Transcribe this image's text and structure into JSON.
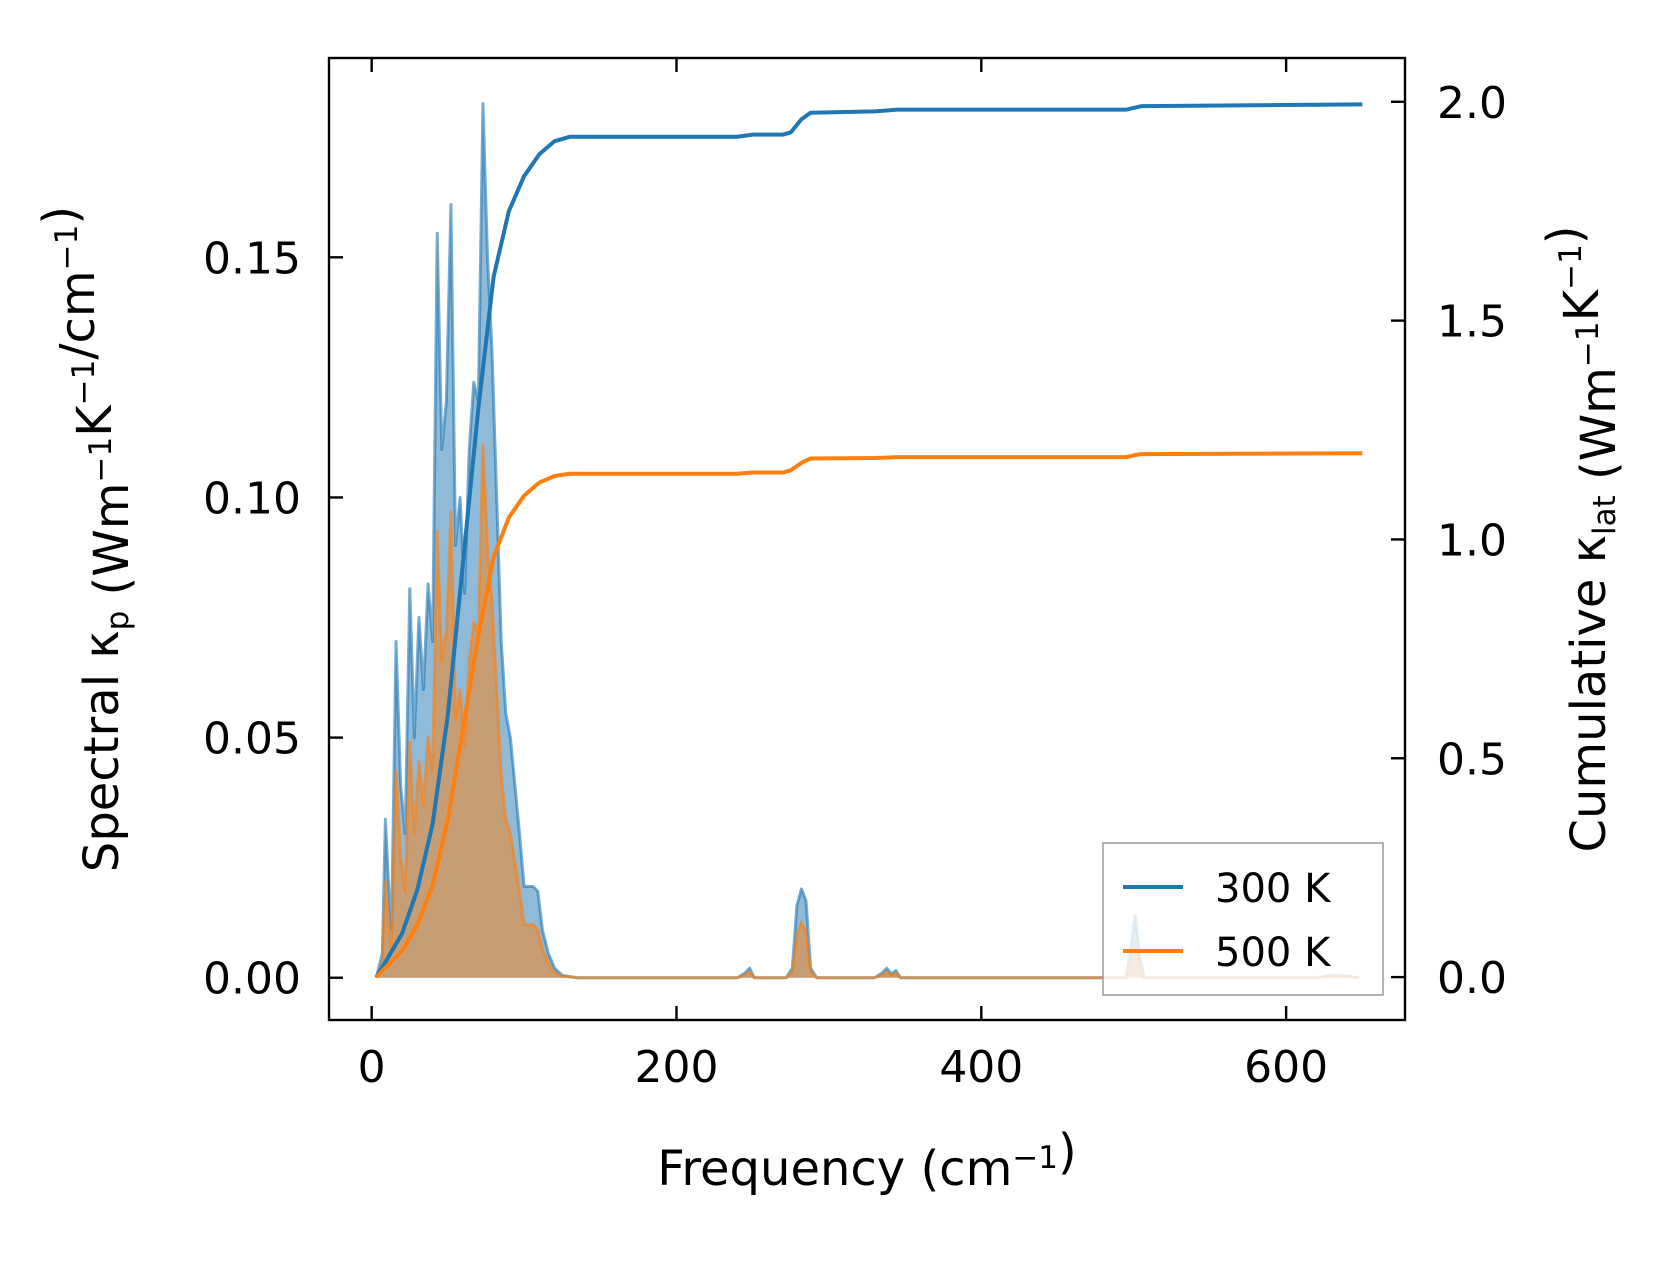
{
  "chart_data": {
    "type": "area",
    "xlabel": {
      "main": "Frequency (cm",
      "sup": "−1",
      "tail": ")"
    },
    "ylabel_left": {
      "parts": [
        {
          "t": "Spectral κ"
        },
        {
          "t": "p",
          "sub": true
        },
        {
          "t": " (Wm"
        },
        {
          "t": "−1",
          "sup": true
        },
        {
          "t": "K"
        },
        {
          "t": "−1",
          "sup": true
        },
        {
          "t": "/cm"
        },
        {
          "t": "−1",
          "sup": true
        },
        {
          "t": ")"
        }
      ]
    },
    "ylabel_right": {
      "parts": [
        {
          "t": "Cumulative κ"
        },
        {
          "t": "lat",
          "sub": true
        },
        {
          "t": " (Wm"
        },
        {
          "t": "−1",
          "sup": true
        },
        {
          "t": "K"
        },
        {
          "t": "−1",
          "sup": true
        },
        {
          "t": ")"
        }
      ]
    },
    "xlim": [
      -28,
      678
    ],
    "ylim_left": [
      -0.0088,
      0.1915
    ],
    "ylim_right": [
      -0.098,
      2.1
    ],
    "xticks": [
      0,
      200,
      400,
      600
    ],
    "yticks_left": [
      0.0,
      0.05,
      0.1,
      0.15
    ],
    "yticks_left_labels": [
      "0.00",
      "0.05",
      "0.10",
      "0.15"
    ],
    "yticks_right": [
      0.0,
      0.5,
      1.0,
      1.5,
      2.0
    ],
    "yticks_right_labels": [
      "0.0",
      "0.5",
      "1.0",
      "1.5",
      "2.0"
    ],
    "legend_position": "lower-right",
    "colors": {
      "300K": "#1f77b4",
      "500K": "#ff7f0e"
    },
    "series": [
      {
        "name": "300 K",
        "color": "#1f77b4",
        "spectral": [
          [
            3,
            0.0
          ],
          [
            7,
            0.005
          ],
          [
            9,
            0.033
          ],
          [
            11,
            0.02
          ],
          [
            13,
            0.01
          ],
          [
            16,
            0.07
          ],
          [
            19,
            0.04
          ],
          [
            22,
            0.03
          ],
          [
            25,
            0.081
          ],
          [
            28,
            0.05
          ],
          [
            31,
            0.075
          ],
          [
            34,
            0.06
          ],
          [
            37,
            0.082
          ],
          [
            40,
            0.07
          ],
          [
            43,
            0.155
          ],
          [
            46,
            0.11
          ],
          [
            49,
            0.12
          ],
          [
            52,
            0.161
          ],
          [
            55,
            0.09
          ],
          [
            58,
            0.1
          ],
          [
            61,
            0.08
          ],
          [
            64,
            0.11
          ],
          [
            67,
            0.124
          ],
          [
            70,
            0.12
          ],
          [
            73,
            0.182
          ],
          [
            76,
            0.15
          ],
          [
            79,
            0.13
          ],
          [
            82,
            0.1
          ],
          [
            85,
            0.07
          ],
          [
            88,
            0.055
          ],
          [
            91,
            0.05
          ],
          [
            94,
            0.04
          ],
          [
            97,
            0.03
          ],
          [
            100,
            0.019
          ],
          [
            103,
            0.019
          ],
          [
            106,
            0.019
          ],
          [
            109,
            0.018
          ],
          [
            112,
            0.01
          ],
          [
            116,
            0.005
          ],
          [
            120,
            0.002
          ],
          [
            125,
            0.0005
          ],
          [
            135,
            0.0
          ],
          [
            240,
            0.0
          ],
          [
            245,
            0.001
          ],
          [
            248,
            0.002
          ],
          [
            251,
            0.0
          ],
          [
            272,
            0.0
          ],
          [
            276,
            0.002
          ],
          [
            279,
            0.015
          ],
          [
            282,
            0.0185
          ],
          [
            285,
            0.016
          ],
          [
            288,
            0.002
          ],
          [
            292,
            0.0
          ],
          [
            330,
            0.0
          ],
          [
            335,
            0.001
          ],
          [
            338,
            0.002
          ],
          [
            341,
            0.0008
          ],
          [
            344,
            0.0015
          ],
          [
            347,
            0.0
          ],
          [
            495,
            0.0
          ],
          [
            498,
            0.006
          ],
          [
            501,
            0.013
          ],
          [
            504,
            0.004
          ],
          [
            507,
            0.0
          ],
          [
            620,
            0.0
          ],
          [
            630,
            0.0005
          ],
          [
            640,
            0.0003
          ],
          [
            648,
            0.0
          ]
        ],
        "cumulative": [
          [
            3,
            0.0
          ],
          [
            10,
            0.04
          ],
          [
            20,
            0.1
          ],
          [
            30,
            0.2
          ],
          [
            40,
            0.35
          ],
          [
            50,
            0.6
          ],
          [
            60,
            0.95
          ],
          [
            70,
            1.3
          ],
          [
            80,
            1.6
          ],
          [
            90,
            1.75
          ],
          [
            100,
            1.83
          ],
          [
            110,
            1.88
          ],
          [
            120,
            1.91
          ],
          [
            130,
            1.92
          ],
          [
            240,
            1.92
          ],
          [
            250,
            1.925
          ],
          [
            270,
            1.925
          ],
          [
            275,
            1.93
          ],
          [
            282,
            1.96
          ],
          [
            288,
            1.975
          ],
          [
            330,
            1.978
          ],
          [
            345,
            1.982
          ],
          [
            495,
            1.982
          ],
          [
            500,
            1.986
          ],
          [
            505,
            1.99
          ],
          [
            650,
            1.994
          ]
        ]
      },
      {
        "name": "500 K",
        "color": "#ff7f0e",
        "spectral": [
          [
            3,
            0.0
          ],
          [
            7,
            0.003
          ],
          [
            9,
            0.02
          ],
          [
            11,
            0.012
          ],
          [
            13,
            0.006
          ],
          [
            16,
            0.043
          ],
          [
            19,
            0.025
          ],
          [
            22,
            0.018
          ],
          [
            25,
            0.049
          ],
          [
            28,
            0.03
          ],
          [
            31,
            0.045
          ],
          [
            34,
            0.036
          ],
          [
            37,
            0.05
          ],
          [
            40,
            0.043
          ],
          [
            43,
            0.093
          ],
          [
            46,
            0.066
          ],
          [
            49,
            0.072
          ],
          [
            52,
            0.097
          ],
          [
            55,
            0.054
          ],
          [
            58,
            0.06
          ],
          [
            61,
            0.048
          ],
          [
            64,
            0.066
          ],
          [
            67,
            0.074
          ],
          [
            70,
            0.072
          ],
          [
            73,
            0.111
          ],
          [
            76,
            0.09
          ],
          [
            79,
            0.078
          ],
          [
            82,
            0.06
          ],
          [
            85,
            0.042
          ],
          [
            88,
            0.033
          ],
          [
            91,
            0.03
          ],
          [
            94,
            0.024
          ],
          [
            97,
            0.018
          ],
          [
            100,
            0.011
          ],
          [
            103,
            0.011
          ],
          [
            106,
            0.011
          ],
          [
            109,
            0.01
          ],
          [
            112,
            0.006
          ],
          [
            116,
            0.003
          ],
          [
            120,
            0.001
          ],
          [
            125,
            0.0003
          ],
          [
            135,
            0.0
          ],
          [
            240,
            0.0
          ],
          [
            245,
            0.0006
          ],
          [
            248,
            0.0012
          ],
          [
            251,
            0.0
          ],
          [
            272,
            0.0
          ],
          [
            276,
            0.0012
          ],
          [
            279,
            0.009
          ],
          [
            282,
            0.0115
          ],
          [
            285,
            0.0095
          ],
          [
            288,
            0.0012
          ],
          [
            292,
            0.0
          ],
          [
            330,
            0.0
          ],
          [
            335,
            0.0006
          ],
          [
            338,
            0.0012
          ],
          [
            341,
            0.0005
          ],
          [
            344,
            0.0009
          ],
          [
            347,
            0.0
          ],
          [
            495,
            0.0
          ],
          [
            498,
            0.0035
          ],
          [
            501,
            0.0075
          ],
          [
            504,
            0.0025
          ],
          [
            507,
            0.0
          ],
          [
            620,
            0.0
          ],
          [
            630,
            0.0003
          ],
          [
            640,
            0.0002
          ],
          [
            648,
            0.0
          ]
        ],
        "cumulative": [
          [
            3,
            0.0
          ],
          [
            10,
            0.025
          ],
          [
            20,
            0.06
          ],
          [
            30,
            0.12
          ],
          [
            40,
            0.21
          ],
          [
            50,
            0.36
          ],
          [
            60,
            0.57
          ],
          [
            70,
            0.78
          ],
          [
            80,
            0.96
          ],
          [
            90,
            1.05
          ],
          [
            100,
            1.1
          ],
          [
            110,
            1.13
          ],
          [
            120,
            1.145
          ],
          [
            130,
            1.15
          ],
          [
            240,
            1.15
          ],
          [
            250,
            1.153
          ],
          [
            270,
            1.153
          ],
          [
            275,
            1.158
          ],
          [
            282,
            1.175
          ],
          [
            288,
            1.185
          ],
          [
            330,
            1.186
          ],
          [
            345,
            1.188
          ],
          [
            495,
            1.188
          ],
          [
            500,
            1.192
          ],
          [
            505,
            1.195
          ],
          [
            650,
            1.197
          ]
        ]
      }
    ]
  }
}
